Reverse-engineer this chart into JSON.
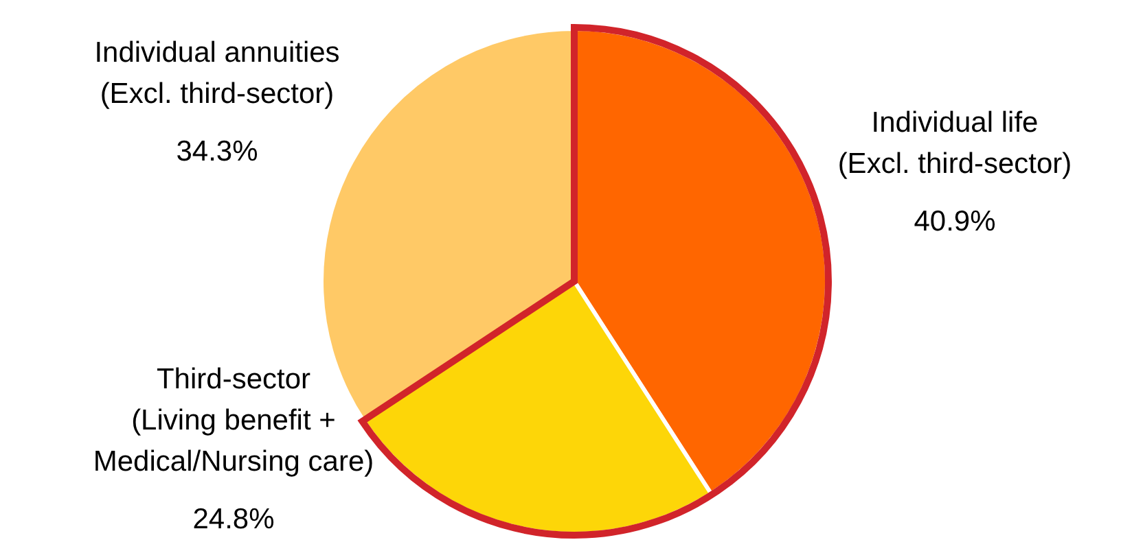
{
  "chart_data": {
    "type": "pie",
    "categories": [
      "Individual life\n(Excl. third-sector)",
      "Third-sector\n(Living benefit +\nMedical/Nursing care)",
      "Individual annuities\n(Excl. third-sector)"
    ],
    "values": [
      40.9,
      24.8,
      34.3
    ],
    "value_labels": [
      "40.9%",
      "24.8%",
      "34.3%"
    ],
    "colors": [
      "#ff6600",
      "#fdd608",
      "#ffc966"
    ],
    "legend": false
  }
}
